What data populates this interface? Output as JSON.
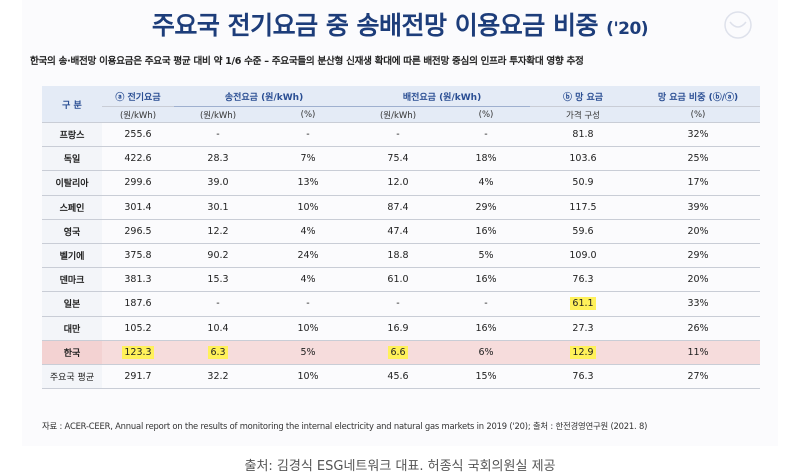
{
  "title": "주요국 전기요금 중 송배전망 이용요금 비중",
  "title_year": "('20)",
  "subtitle": "한국의 송·배전망 이용요금은 주요국 평균 대비 약 1/6 수준 – 주요국들의 분산형 신재생 확대에 따른 배전망 중심의 인프라 투자확대 영향 추정",
  "table": {
    "headers": {
      "country": "구 분",
      "elec": "ⓐ 전기요금",
      "trans": "송전요금 (원/kWh)",
      "dist": "배전요금 (원/kWh)",
      "grid": "ⓑ 망 요금",
      "share": "망 요금 비중 (ⓑ/ⓐ)",
      "elec_unit": "(원/kWh)",
      "trans_unit1": "(원/kWh)",
      "trans_unit2": "(%)",
      "dist_unit1": "(원/kWh)",
      "dist_unit2": "(%)",
      "grid_unit": "가격 구성",
      "share_unit": "(%)"
    },
    "rows": [
      {
        "country": "프랑스",
        "elec": "255.6",
        "trans": "-",
        "trans_pct": "-",
        "dist": "-",
        "dist_pct": "-",
        "grid": "81.8",
        "share": "32%"
      },
      {
        "country": "독일",
        "elec": "422.6",
        "trans": "28.3",
        "trans_pct": "7%",
        "dist": "75.4",
        "dist_pct": "18%",
        "grid": "103.6",
        "share": "25%"
      },
      {
        "country": "이탈리아",
        "elec": "299.6",
        "trans": "39.0",
        "trans_pct": "13%",
        "dist": "12.0",
        "dist_pct": "4%",
        "grid": "50.9",
        "share": "17%"
      },
      {
        "country": "스페인",
        "elec": "301.4",
        "trans": "30.1",
        "trans_pct": "10%",
        "dist": "87.4",
        "dist_pct": "29%",
        "grid": "117.5",
        "share": "39%"
      },
      {
        "country": "영국",
        "elec": "296.5",
        "trans": "12.2",
        "trans_pct": "4%",
        "dist": "47.4",
        "dist_pct": "16%",
        "grid": "59.6",
        "share": "20%"
      },
      {
        "country": "벨기에",
        "elec": "375.8",
        "trans": "90.2",
        "trans_pct": "24%",
        "dist": "18.8",
        "dist_pct": "5%",
        "grid": "109.0",
        "share": "29%"
      },
      {
        "country": "덴마크",
        "elec": "381.3",
        "trans": "15.3",
        "trans_pct": "4%",
        "dist": "61.0",
        "dist_pct": "16%",
        "grid": "76.3",
        "share": "20%"
      },
      {
        "country": "일본",
        "elec": "187.6",
        "trans": "-",
        "trans_pct": "-",
        "dist": "-",
        "dist_pct": "-",
        "grid": "61.1",
        "share": "33%"
      },
      {
        "country": "대만",
        "elec": "105.2",
        "trans": "10.4",
        "trans_pct": "10%",
        "dist": "16.9",
        "dist_pct": "16%",
        "grid": "27.3",
        "share": "26%"
      },
      {
        "country": "한국",
        "elec": "123.3",
        "trans": "6.3",
        "trans_pct": "5%",
        "dist": "6.6",
        "dist_pct": "6%",
        "grid": "12.9",
        "share": "11%"
      },
      {
        "country": "주요국 평균",
        "elec": "291.7",
        "trans": "32.2",
        "trans_pct": "10%",
        "dist": "45.6",
        "dist_pct": "15%",
        "grid": "76.3",
        "share": "27%"
      }
    ]
  },
  "source": "자료 : ACER-CEER, Annual report on the results of monitoring the internal electricity and natural gas markets in 2019 ('20); 출처 : 한전경영연구원 (2021. 8)",
  "credit": "출처: 김경식 ESG네트워크 대표. 허종식 국회의원실 제공",
  "colors": {
    "title": "#1d3d7a",
    "header_bg": "#e4ebf6",
    "header_text": "#2a4e93",
    "korea_row": "#f6dcdc",
    "highlight": "#fff15a"
  }
}
